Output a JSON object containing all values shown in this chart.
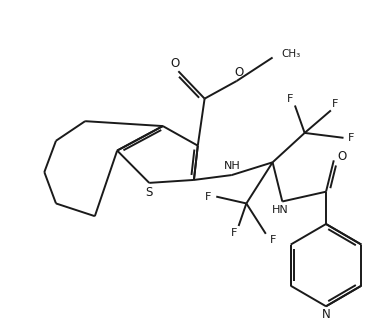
{
  "bg_color": "#ffffff",
  "line_color": "#1a1a1a",
  "line_width": 1.4,
  "figsize": [
    3.82,
    3.22
  ],
  "dpi": 100,
  "xlim": [
    0,
    10
  ],
  "ylim": [
    0,
    8.5
  ]
}
